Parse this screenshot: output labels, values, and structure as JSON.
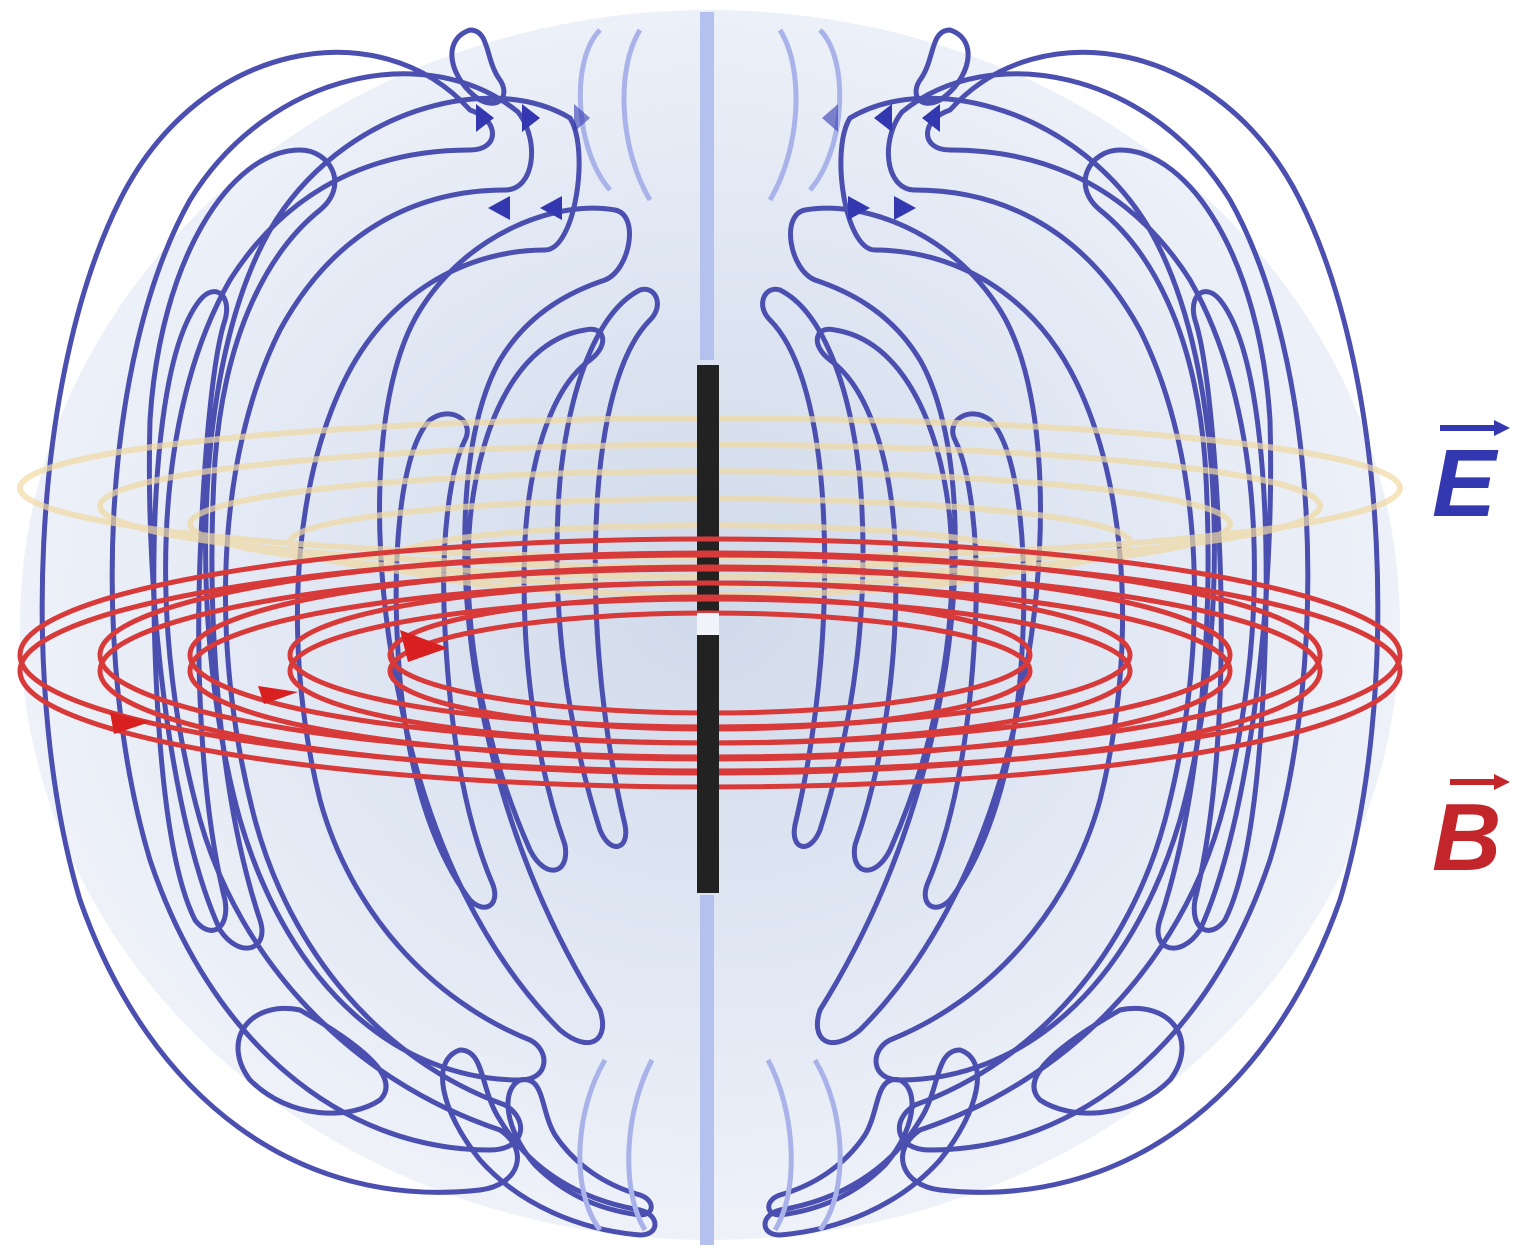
{
  "legend": {
    "electric": {
      "symbol": "E",
      "color": "#3438b0"
    },
    "magnetic": {
      "symbol": "B",
      "color": "#c2262b"
    }
  },
  "colors": {
    "background": "#ffffff",
    "glow": "#dfe6f4",
    "electric_field_lines": "#4a4fb0",
    "magnetic_field_lines": "#d83a3a",
    "magnetic_glow": "#f3dca6",
    "antenna": "#222222",
    "axis": "#b8c3ee"
  }
}
